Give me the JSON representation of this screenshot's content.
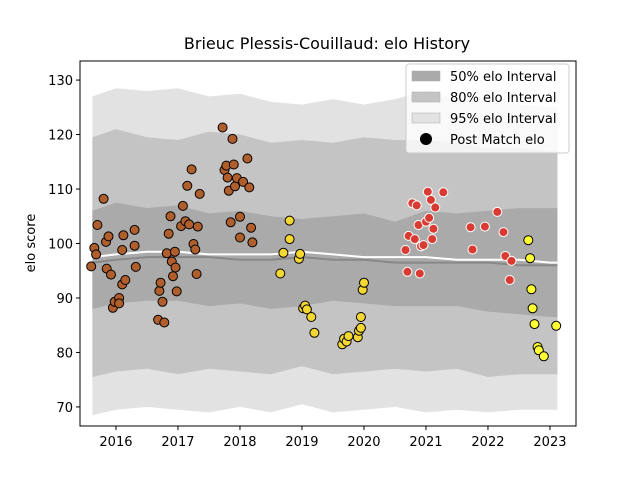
{
  "chart_data": {
    "type": "scatter",
    "title": "Brieuc Plessis-Couillaud: elo History",
    "xlabel": "",
    "ylabel": "elo score",
    "xlim": [
      2015.42,
      2023.42
    ],
    "ylim": [
      66.5,
      133.5
    ],
    "xticks": [
      2016,
      2017,
      2018,
      2019,
      2020,
      2021,
      2022,
      2023
    ],
    "yticks": [
      70,
      80,
      90,
      100,
      110,
      120,
      130
    ],
    "grid": false,
    "legend_placement": "upper right",
    "legend": [
      {
        "label": "50% elo Interval",
        "kind": "band",
        "color": "#aaaaaa"
      },
      {
        "label": "80% elo Interval",
        "kind": "band",
        "color": "#c4c4c4"
      },
      {
        "label": "95% elo Interval",
        "kind": "band",
        "color": "#e2e2e2"
      },
      {
        "label": "Post Match elo",
        "kind": "marker",
        "color": "#000000"
      }
    ],
    "bands": {
      "x": [
        2015.62,
        2016.0,
        2016.5,
        2017.0,
        2017.5,
        2018.0,
        2018.5,
        2019.0,
        2019.5,
        2020.0,
        2020.5,
        2021.0,
        2021.5,
        2022.0,
        2022.5,
        2023.0,
        2023.12
      ],
      "q95_hi": [
        127.0,
        128.5,
        128.0,
        128.5,
        127.0,
        127.5,
        126.0,
        125.5,
        126.5,
        125.5,
        126.5,
        128.0,
        126.5,
        126.0,
        125.5,
        125.0,
        125.0
      ],
      "q80_hi": [
        119.5,
        121.0,
        119.5,
        119.0,
        120.5,
        120.0,
        118.5,
        119.0,
        118.5,
        119.5,
        119.0,
        119.0,
        118.5,
        117.5,
        117.5,
        117.0,
        117.0
      ],
      "q50_hi": [
        106.0,
        107.5,
        106.5,
        107.0,
        105.5,
        106.0,
        105.0,
        104.5,
        105.0,
        105.5,
        104.0,
        106.0,
        105.5,
        106.0,
        106.5,
        106.5,
        106.5
      ],
      "median": [
        96.5,
        97.0,
        97.5,
        97.5,
        97.5,
        97.0,
        97.0,
        97.5,
        97.0,
        97.0,
        96.5,
        96.5,
        96.5,
        96.5,
        96.0,
        96.0,
        96.0
      ],
      "mean": [
        97.5,
        98.0,
        98.5,
        98.5,
        98.0,
        98.0,
        98.0,
        98.5,
        98.0,
        97.5,
        97.5,
        97.5,
        97.0,
        97.0,
        97.0,
        96.5,
        96.5
      ],
      "q50_lo": [
        88.0,
        89.0,
        89.5,
        89.5,
        88.5,
        89.0,
        88.0,
        88.5,
        89.5,
        89.0,
        88.5,
        88.5,
        88.5,
        87.5,
        87.0,
        86.5,
        86.5
      ],
      "q80_lo": [
        75.5,
        76.5,
        77.0,
        76.0,
        77.0,
        76.5,
        76.0,
        77.5,
        76.0,
        76.5,
        77.0,
        76.5,
        77.0,
        75.5,
        76.0,
        76.0,
        76.0
      ],
      "q95_lo": [
        68.5,
        69.5,
        70.0,
        69.5,
        69.0,
        70.0,
        69.0,
        70.5,
        69.0,
        69.5,
        70.0,
        69.0,
        69.5,
        69.0,
        69.5,
        69.5,
        69.5
      ]
    },
    "series": [
      {
        "color": "#b05f2c",
        "points": [
          [
            2015.6,
            95.8
          ],
          [
            2015.65,
            99.2
          ],
          [
            2015.7,
            103.4
          ],
          [
            2015.68,
            98.0
          ],
          [
            2015.8,
            108.2
          ],
          [
            2015.84,
            100.3
          ],
          [
            2015.85,
            95.4
          ],
          [
            2015.88,
            101.3
          ],
          [
            2015.92,
            94.3
          ],
          [
            2015.95,
            88.2
          ],
          [
            2015.98,
            89.3
          ],
          [
            2016.05,
            90.0
          ],
          [
            2016.05,
            89.0
          ],
          [
            2016.1,
            92.5
          ],
          [
            2016.1,
            98.8
          ],
          [
            2016.12,
            101.5
          ],
          [
            2016.15,
            93.3
          ],
          [
            2016.3,
            102.5
          ],
          [
            2016.3,
            99.6
          ],
          [
            2016.32,
            95.7
          ],
          [
            2016.68,
            86.0
          ],
          [
            2016.7,
            91.3
          ],
          [
            2016.72,
            92.8
          ],
          [
            2016.75,
            89.3
          ],
          [
            2016.78,
            85.5
          ],
          [
            2016.82,
            98.2
          ],
          [
            2016.85,
            101.8
          ],
          [
            2016.88,
            105.0
          ],
          [
            2016.9,
            96.7
          ],
          [
            2016.92,
            94.0
          ],
          [
            2016.95,
            98.5
          ],
          [
            2016.96,
            95.6
          ],
          [
            2016.98,
            91.2
          ],
          [
            2017.05,
            103.2
          ],
          [
            2017.08,
            106.9
          ],
          [
            2017.12,
            104.1
          ],
          [
            2017.15,
            110.6
          ],
          [
            2017.18,
            103.5
          ],
          [
            2017.22,
            113.6
          ],
          [
            2017.25,
            99.9
          ],
          [
            2017.28,
            98.9
          ],
          [
            2017.3,
            94.4
          ],
          [
            2017.32,
            103.1
          ],
          [
            2017.35,
            109.1
          ],
          [
            2017.72,
            121.3
          ],
          [
            2017.75,
            113.5
          ],
          [
            2017.78,
            114.3
          ],
          [
            2017.8,
            112.1
          ],
          [
            2017.82,
            109.7
          ],
          [
            2017.85,
            103.9
          ],
          [
            2017.88,
            119.2
          ],
          [
            2017.9,
            114.5
          ],
          [
            2017.92,
            110.5
          ],
          [
            2017.95,
            112.0
          ],
          [
            2018.0,
            104.9
          ],
          [
            2018.0,
            101.1
          ],
          [
            2018.05,
            111.3
          ],
          [
            2018.12,
            115.6
          ],
          [
            2018.15,
            110.3
          ],
          [
            2018.18,
            102.9
          ],
          [
            2018.2,
            100.2
          ]
        ]
      },
      {
        "color": "#f5d731",
        "points": [
          [
            2018.65,
            94.5
          ],
          [
            2018.7,
            98.3
          ],
          [
            2018.8,
            104.2
          ],
          [
            2018.8,
            100.8
          ],
          [
            2018.95,
            97.2
          ],
          [
            2018.97,
            98.1
          ],
          [
            2019.02,
            88.1
          ],
          [
            2019.05,
            88.6
          ],
          [
            2019.08,
            87.9
          ],
          [
            2019.15,
            86.5
          ],
          [
            2019.2,
            83.6
          ],
          [
            2019.65,
            81.5
          ],
          [
            2019.68,
            82.5
          ],
          [
            2019.72,
            82.0
          ],
          [
            2019.75,
            83.0
          ],
          [
            2019.9,
            82.8
          ],
          [
            2019.92,
            84.0
          ],
          [
            2019.95,
            84.5
          ],
          [
            2019.95,
            86.5
          ],
          [
            2019.98,
            91.5
          ],
          [
            2020.0,
            92.8
          ]
        ]
      },
      {
        "color": "#d93a31",
        "points": [
          [
            2020.67,
            98.8
          ],
          [
            2020.7,
            94.8
          ],
          [
            2020.72,
            101.4
          ],
          [
            2020.78,
            107.4
          ],
          [
            2020.82,
            100.8
          ],
          [
            2020.85,
            107.0
          ],
          [
            2020.88,
            103.4
          ],
          [
            2020.9,
            94.5
          ],
          [
            2020.92,
            99.5
          ],
          [
            2020.96,
            99.7
          ],
          [
            2021.0,
            104.0
          ],
          [
            2021.03,
            109.5
          ],
          [
            2021.05,
            104.7
          ],
          [
            2021.08,
            108.0
          ],
          [
            2021.1,
            100.8
          ],
          [
            2021.12,
            102.7
          ],
          [
            2021.15,
            106.6
          ],
          [
            2021.28,
            109.4
          ],
          [
            2021.72,
            103.0
          ],
          [
            2021.75,
            98.9
          ],
          [
            2021.95,
            103.1
          ],
          [
            2022.15,
            105.8
          ],
          [
            2022.25,
            102.1
          ],
          [
            2022.28,
            97.7
          ],
          [
            2022.35,
            93.3
          ],
          [
            2022.38,
            96.8
          ]
        ]
      },
      {
        "color": "#ffff33",
        "points": [
          [
            2022.65,
            100.6
          ],
          [
            2022.68,
            97.3
          ],
          [
            2022.7,
            91.6
          ],
          [
            2022.72,
            88.1
          ],
          [
            2022.75,
            85.2
          ],
          [
            2022.8,
            81.0
          ],
          [
            2022.82,
            80.4
          ],
          [
            2022.9,
            79.3
          ],
          [
            2023.1,
            84.9
          ]
        ]
      }
    ]
  }
}
